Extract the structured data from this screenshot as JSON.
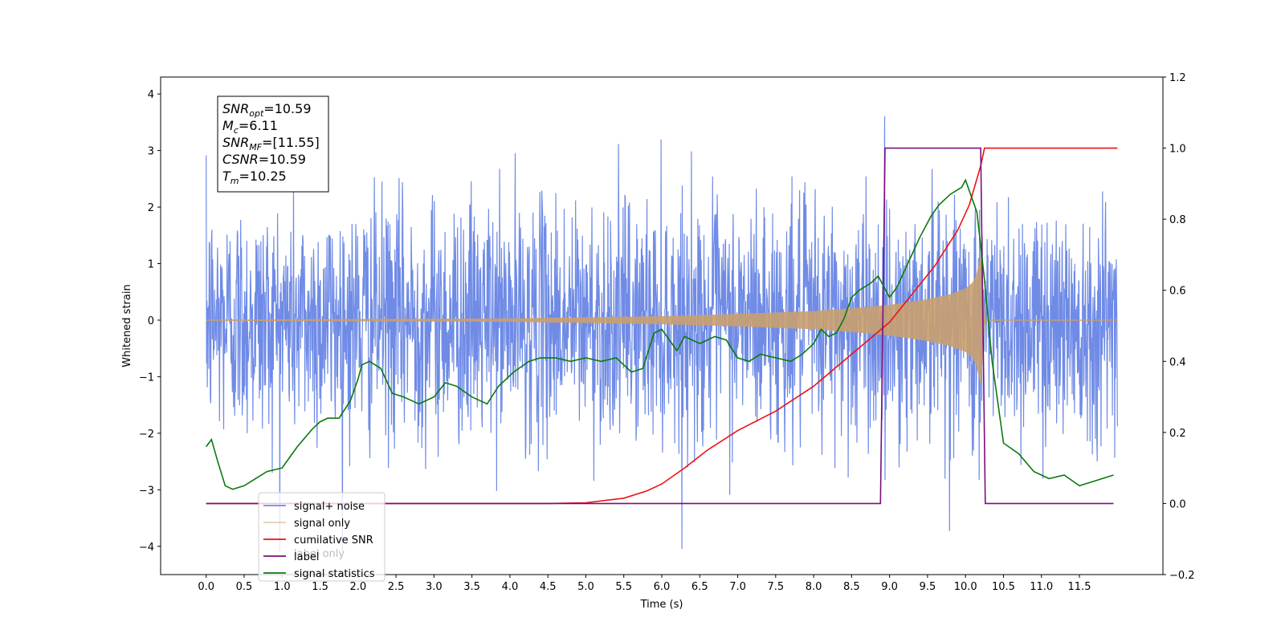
{
  "chart_data": {
    "type": "line",
    "title": "",
    "xlabel": "Time (s)",
    "ylabel": "Whitened strain",
    "xlim": [
      -0.6,
      12.6
    ],
    "ylim": [
      -4.5,
      4.3
    ],
    "y2lim": [
      -0.2,
      1.2
    ],
    "x_ticks": [
      "0.0",
      "0.5",
      "1.0",
      "1.5",
      "2.0",
      "2.5",
      "3.0",
      "3.5",
      "4.0",
      "4.5",
      "5.0",
      "5.5",
      "6.0",
      "6.5",
      "7.0",
      "7.5",
      "8.0",
      "8.5",
      "9.0",
      "9.5",
      "10.0",
      "10.5",
      "11.0",
      "11.5"
    ],
    "y_ticks": [
      "4",
      "3",
      "2",
      "1",
      "0",
      "−1",
      "−2",
      "−3",
      "−4"
    ],
    "y2_ticks": [
      "1.2",
      "1.0",
      "0.8",
      "0.6",
      "0.4",
      "0.2",
      "0.0",
      "−0.2"
    ],
    "grid": false,
    "legend_position": "lower-left",
    "colors": {
      "signal_noise": "#6f8be6",
      "signal_only": "#c9a070",
      "cumulative_snr": "#ee1111",
      "label": "#7a0f7a",
      "signal_statistics": "#0a7a0a"
    },
    "annotation": [
      {
        "key": "SNR",
        "sub": "opt",
        "value": "=10.59"
      },
      {
        "key": "M",
        "sub": "c",
        "value": "=6.11"
      },
      {
        "key": "SNR",
        "sub": "MF",
        "value": "=[11.55]"
      },
      {
        "key": "CSNR",
        "sub": "",
        "value": "=10.59"
      },
      {
        "key": "T",
        "sub": "m",
        "value": "=10.25"
      }
    ],
    "legend": [
      "signal+ noise",
      "signal only",
      "cumilative SNR",
      "label",
      "signal statistics"
    ],
    "legend_overlap_text": "label only",
    "series": [
      {
        "name": "signal+ noise",
        "axis": "left",
        "x_range": [
          0.0,
          12.0
        ],
        "amplitude_band": [
          -3.0,
          3.0
        ],
        "max": 3.87,
        "min": -4.1
      },
      {
        "name": "signal only",
        "axis": "left",
        "envelope": {
          "x": [
            0.0,
            4.0,
            6.0,
            7.0,
            8.0,
            8.5,
            9.0,
            9.5,
            9.8,
            10.0,
            10.1,
            10.15,
            10.2,
            10.25,
            10.3,
            12.0
          ],
          "y": [
            0.0,
            0.02,
            0.06,
            0.1,
            0.15,
            0.2,
            0.26,
            0.36,
            0.45,
            0.55,
            0.66,
            0.8,
            1.1,
            0.0,
            0.0,
            0.0
          ]
        }
      },
      {
        "name": "cumilative SNR",
        "axis": "right",
        "x": [
          0.0,
          4.5,
          5.0,
          5.5,
          5.8,
          6.0,
          6.3,
          6.6,
          7.0,
          7.5,
          8.0,
          8.5,
          9.0,
          9.3,
          9.6,
          9.9,
          10.05,
          10.2,
          10.25,
          12.0
        ],
        "y": [
          0.0,
          0.0,
          0.002,
          0.015,
          0.035,
          0.055,
          0.1,
          0.15,
          0.205,
          0.26,
          0.33,
          0.42,
          0.51,
          0.59,
          0.67,
          0.77,
          0.84,
          0.95,
          1.0,
          1.0
        ]
      },
      {
        "name": "label",
        "axis": "right",
        "x": [
          0.0,
          8.88,
          8.94,
          10.2,
          10.26,
          11.95
        ],
        "y": [
          0.0,
          0.0,
          1.0,
          1.0,
          0.0,
          0.0
        ]
      },
      {
        "name": "signal statistics",
        "axis": "right",
        "x": [
          0.0,
          0.07,
          0.15,
          0.25,
          0.35,
          0.5,
          0.65,
          0.8,
          1.0,
          1.1,
          1.2,
          1.4,
          1.5,
          1.6,
          1.75,
          1.9,
          2.0,
          2.05,
          2.15,
          2.3,
          2.45,
          2.6,
          2.8,
          3.0,
          3.15,
          3.3,
          3.5,
          3.7,
          3.85,
          4.05,
          4.25,
          4.4,
          4.6,
          4.8,
          5.0,
          5.2,
          5.4,
          5.5,
          5.6,
          5.75,
          5.9,
          6.0,
          6.1,
          6.2,
          6.3,
          6.5,
          6.7,
          6.85,
          7.0,
          7.15,
          7.3,
          7.5,
          7.7,
          7.85,
          8.0,
          8.1,
          8.2,
          8.3,
          8.4,
          8.5,
          8.6,
          8.75,
          8.85,
          9.0,
          9.1,
          9.25,
          9.4,
          9.55,
          9.65,
          9.8,
          9.95,
          10.0,
          10.05,
          10.15,
          10.25,
          10.35,
          10.5,
          10.7,
          10.9,
          11.1,
          11.3,
          11.5,
          11.65,
          11.8,
          11.95
        ],
        "y": [
          0.16,
          0.18,
          0.12,
          0.05,
          0.04,
          0.05,
          0.07,
          0.09,
          0.1,
          0.13,
          0.16,
          0.21,
          0.23,
          0.24,
          0.24,
          0.29,
          0.35,
          0.39,
          0.4,
          0.38,
          0.31,
          0.3,
          0.28,
          0.3,
          0.34,
          0.33,
          0.3,
          0.28,
          0.33,
          0.37,
          0.4,
          0.41,
          0.41,
          0.4,
          0.41,
          0.4,
          0.41,
          0.39,
          0.37,
          0.38,
          0.48,
          0.49,
          0.46,
          0.43,
          0.47,
          0.45,
          0.47,
          0.46,
          0.41,
          0.4,
          0.42,
          0.41,
          0.4,
          0.42,
          0.45,
          0.49,
          0.47,
          0.48,
          0.52,
          0.58,
          0.6,
          0.62,
          0.64,
          0.58,
          0.61,
          0.68,
          0.75,
          0.81,
          0.84,
          0.87,
          0.89,
          0.91,
          0.88,
          0.82,
          0.63,
          0.4,
          0.17,
          0.14,
          0.09,
          0.07,
          0.08,
          0.05,
          0.06,
          0.07,
          0.08
        ]
      }
    ]
  }
}
